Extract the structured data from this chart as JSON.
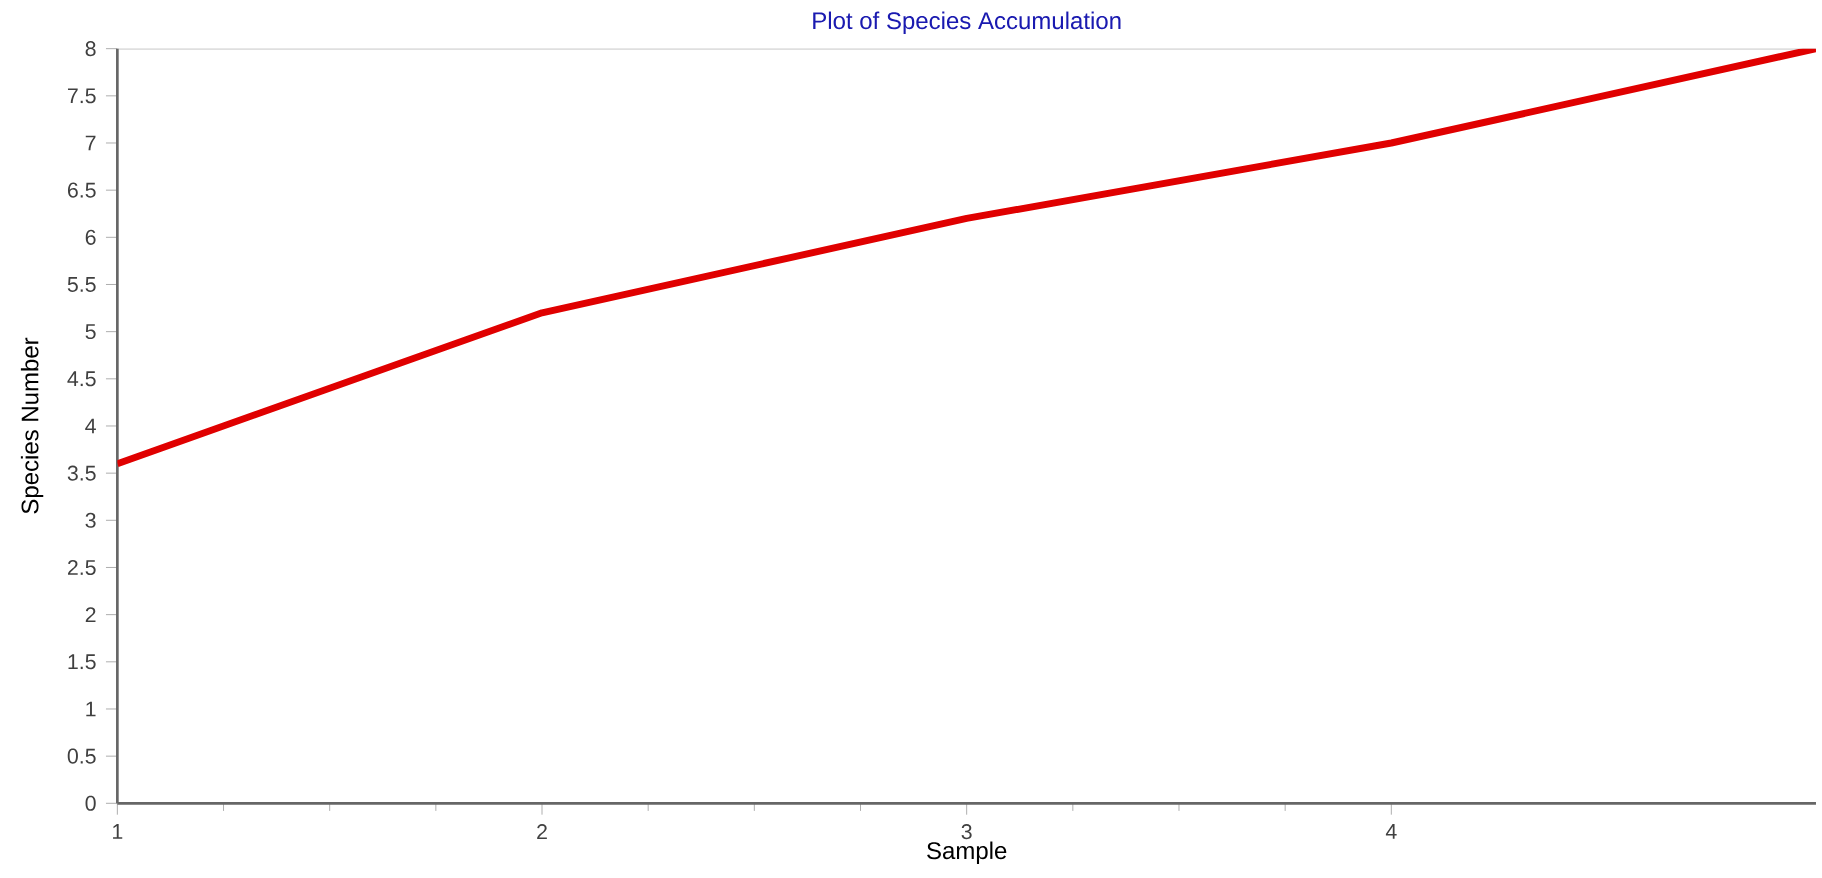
{
  "chart_data": {
    "type": "line",
    "title": "Plot of Species Accumulation",
    "xlabel": "Sample",
    "ylabel": "Species Number",
    "x": [
      1,
      2,
      3,
      4,
      5
    ],
    "series": [
      {
        "color": "#e00000",
        "values": [
          3.6,
          5.2,
          6.2,
          7.0,
          8.0
        ]
      }
    ],
    "xlim": [
      1,
      5
    ],
    "xticks": [
      1,
      2,
      3,
      4
    ],
    "ylim": [
      0,
      8
    ],
    "yticks": [
      0,
      0.5,
      1,
      1.5,
      2,
      2.5,
      3,
      3.5,
      4,
      4.5,
      5,
      5.5,
      6,
      6.5,
      7,
      7.5,
      8
    ],
    "grid": false,
    "marker": "none",
    "line_style": "solid"
  }
}
